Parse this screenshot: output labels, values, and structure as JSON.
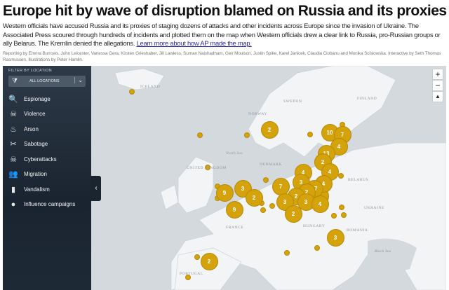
{
  "headline": "Europe hit by wave of disruption blamed on Russia and its proxies",
  "intro": "Western officials have accused Russia and its proxies of staging dozens of attacks and other incidents across Europe since the invasion of Ukraine. The Associated Press scoured through hundreds of incidents and plotted them on the map when Western officials drew a clear link to Russia, pro-Russian groups or ally Belarus. The Kremlin denied the allegations. ",
  "intro_link": "Learn more about how AP made the map.",
  "credits": "Reporting by Emma Burrows, John Leicester, Vanessa Gera, Kirsten Grieshaber, Jill Lawless, Suman Naishadham, Geir Moulson, Justin Spike, Karel Janicek, Claudia Ciobanu and Monika Scislowska. Interactive by Seth Thomas Rasmussen. Illustrations by Peter Hamlin.",
  "filter": {
    "title": "FILTER BY LOCATION",
    "selected": "ALL LOCATIONS",
    "icon": "funnel-icon"
  },
  "categories": [
    {
      "label": "Espionage",
      "icon": "magnifier-icon"
    },
    {
      "label": "Violence",
      "icon": "skull-icon"
    },
    {
      "label": "Arson",
      "icon": "fire-icon"
    },
    {
      "label": "Sabotage",
      "icon": "wire-cutter-icon"
    },
    {
      "label": "Cyberattacks",
      "icon": "computer-skull-icon"
    },
    {
      "label": "Migration",
      "icon": "people-icon"
    },
    {
      "label": "Vandalism",
      "icon": "spray-can-icon"
    },
    {
      "label": "Influence campaigns",
      "icon": "head-icon"
    }
  ],
  "map": {
    "marker_color": "#d4a20a",
    "labels": {
      "iceland": "ICELAND",
      "norway": "NORWAY",
      "sweden": "SWEDEN",
      "finland": "FINLAND",
      "north_sea": "North Sea",
      "denmark": "DENMARK",
      "uk": "UNITED KINGDOM",
      "belarus": "BELARUS",
      "ukraine": "UKRAINE",
      "france": "FRANCE",
      "hungary": "HUNGARY",
      "romania": "ROMANIA",
      "black_sea": "Black Sea",
      "portugal": "PORTUGAL"
    },
    "clusters": [
      "2",
      "10",
      "7",
      "4",
      "13",
      "2",
      "4",
      "4",
      "3",
      "4",
      "7",
      "17",
      "2",
      "3",
      "9",
      "2",
      "2",
      "3",
      "3",
      "4",
      "9",
      "2",
      "3",
      "2",
      ""
    ],
    "zoom_in": "+",
    "zoom_out": "−",
    "compass": "▲"
  }
}
